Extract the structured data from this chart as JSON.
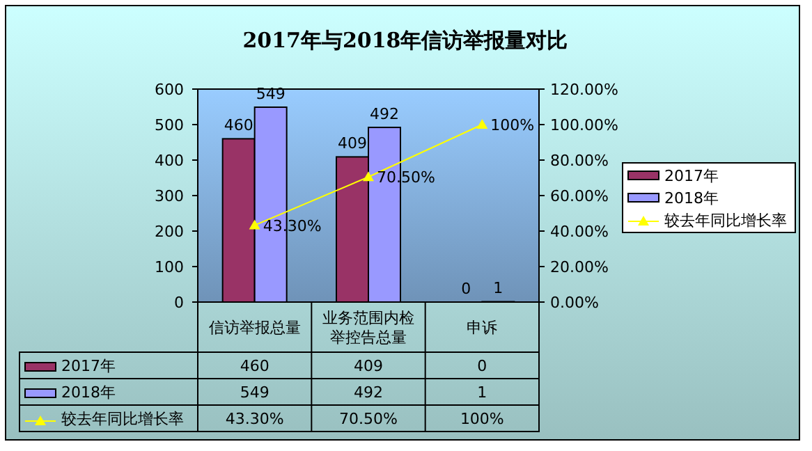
{
  "chart_data": {
    "type": "bar",
    "title": "2017年与2018年信访举报量对比",
    "categories": [
      "信访举报总量",
      "业务范围内检举控告总量",
      "申诉"
    ],
    "series": [
      {
        "name": "2017年",
        "color": "#993366",
        "values": [
          460,
          409,
          0
        ],
        "value_labels": [
          "460",
          "409",
          "0"
        ]
      },
      {
        "name": "2018年",
        "color": "#9999ff",
        "values": [
          549,
          492,
          1
        ],
        "value_labels": [
          "549",
          "492",
          "1"
        ]
      },
      {
        "name": "较去年同比增长率",
        "type": "line",
        "axis": "y2",
        "color": "#ffff00",
        "marker": "triangle",
        "values": [
          43.3,
          70.5,
          100
        ],
        "value_labels": [
          "43.30%",
          "70.50%",
          "100%"
        ]
      }
    ],
    "ylim": [
      0,
      600
    ],
    "yticks": [
      0,
      100,
      200,
      300,
      400,
      500,
      600
    ],
    "y2lim": [
      0,
      120
    ],
    "y2ticks": [
      {
        "value": 0,
        "label": "0.00%"
      },
      {
        "value": 20,
        "label": "20.00%"
      },
      {
        "value": 40,
        "label": "40.00%"
      },
      {
        "value": 60,
        "label": "60.00%"
      },
      {
        "value": 80,
        "label": "80.00%"
      },
      {
        "value": 100,
        "label": "100.00%"
      },
      {
        "value": 120,
        "label": "120.00%"
      }
    ],
    "data_labels": true,
    "legend": "right",
    "grid": false
  }
}
